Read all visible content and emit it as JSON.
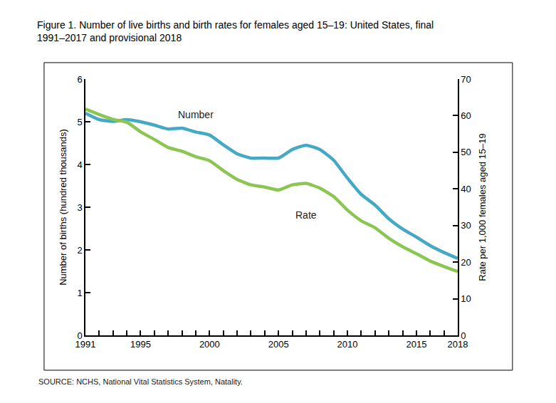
{
  "chart_data": {
    "type": "line",
    "title": "Figure 1. Number of live births and birth rates for females aged 15–19: United States, final\n1991–2017 and provisional 2018",
    "source": "SOURCE: NCHS, National Vital Statistics System, Natality.",
    "y_label": "Number of births (hundred thousands)",
    "y2_label": "Rate per 1,000 females aged 15–19",
    "x": [
      1991,
      1992,
      1993,
      1994,
      1995,
      1996,
      1997,
      1998,
      1999,
      2000,
      2001,
      2002,
      2003,
      2004,
      2005,
      2006,
      2007,
      2008,
      2009,
      2010,
      2011,
      2012,
      2013,
      2014,
      2015,
      2016,
      2017,
      2018
    ],
    "series": [
      {
        "name": "Number",
        "color": "#45a9c4",
        "values": [
          5.2,
          5.05,
          5.01,
          5.05,
          5.0,
          4.92,
          4.83,
          4.85,
          4.76,
          4.69,
          4.46,
          4.25,
          4.15,
          4.15,
          4.15,
          4.35,
          4.45,
          4.35,
          4.1,
          3.68,
          3.3,
          3.05,
          2.73,
          2.49,
          2.3,
          2.1,
          1.94,
          1.8
        ]
      },
      {
        "name": "Rate",
        "color": "#8cc652",
        "axis": "y2",
        "values": [
          61.8,
          60.3,
          59.0,
          58.2,
          55.6,
          53.5,
          51.3,
          50.3,
          48.8,
          47.7,
          45.0,
          42.6,
          41.1,
          40.5,
          39.7,
          41.1,
          41.5,
          40.2,
          37.9,
          34.2,
          31.3,
          29.4,
          26.5,
          24.2,
          22.3,
          20.3,
          18.8,
          17.4
        ]
      }
    ],
    "xlim": [
      1991,
      2018
    ],
    "xticks": [
      1991,
      1995,
      2000,
      2005,
      2010,
      2015,
      2018
    ],
    "ylim": [
      0,
      6
    ],
    "yticks": [
      0,
      1,
      2,
      3,
      4,
      5,
      6
    ],
    "y2lim": [
      0,
      70
    ],
    "y2ticks": [
      0,
      10,
      20,
      30,
      40,
      50,
      60,
      70
    ],
    "grid": false
  }
}
